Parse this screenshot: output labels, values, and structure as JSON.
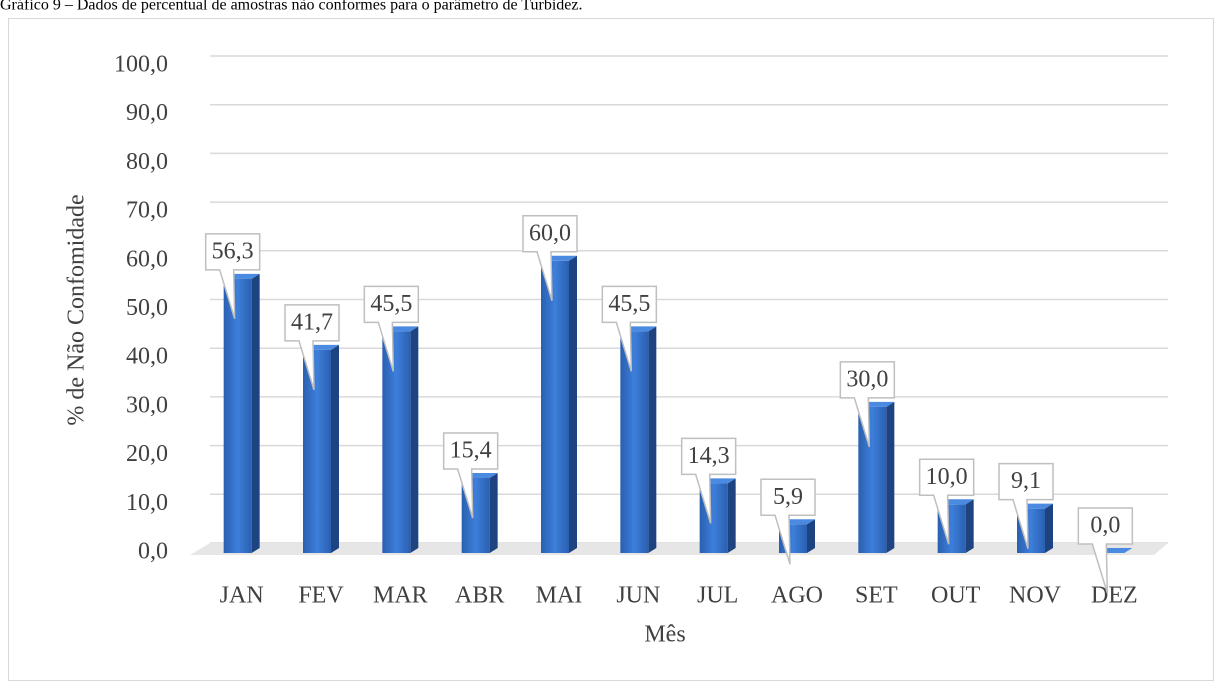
{
  "chart_data": {
    "type": "bar",
    "title": "Gráfico 9 – Dados de percentual de amostras não conformes para o parâmetro de Turbidez.",
    "x_label": "Mês",
    "y_label": "% de Não  Confomidade",
    "categories": [
      "JAN",
      "FEV",
      "MAR",
      "ABR",
      "MAI",
      "JUN",
      "JUL",
      "AGO",
      "SET",
      "OUT",
      "NOV",
      "DEZ"
    ],
    "values": [
      56.3,
      41.7,
      45.5,
      15.4,
      60.0,
      45.5,
      14.3,
      5.9,
      30.0,
      10.0,
      9.1,
      0.0
    ],
    "value_labels": [
      "56,3",
      "41,7",
      "45,5",
      "15,4",
      "60,0",
      "45,5",
      "14,3",
      "5,9",
      "30,0",
      "10,0",
      "9,1",
      "0,0"
    ],
    "color": "#2f6bc4",
    "ylim": [
      0,
      100
    ],
    "yticks": [
      {
        "value": 0,
        "label": "0,0"
      },
      {
        "value": 10,
        "label": "10,0"
      },
      {
        "value": 20,
        "label": "20,0"
      },
      {
        "value": 30,
        "label": "30,0"
      },
      {
        "value": 40,
        "label": "40,0"
      },
      {
        "value": 50,
        "label": "50,0"
      },
      {
        "value": 60,
        "label": "60,0"
      },
      {
        "value": 70,
        "label": "70,0"
      },
      {
        "value": 80,
        "label": "80,0"
      },
      {
        "value": 90,
        "label": "90,0"
      },
      {
        "value": 100,
        "label": "100,0"
      }
    ],
    "grid": true
  }
}
